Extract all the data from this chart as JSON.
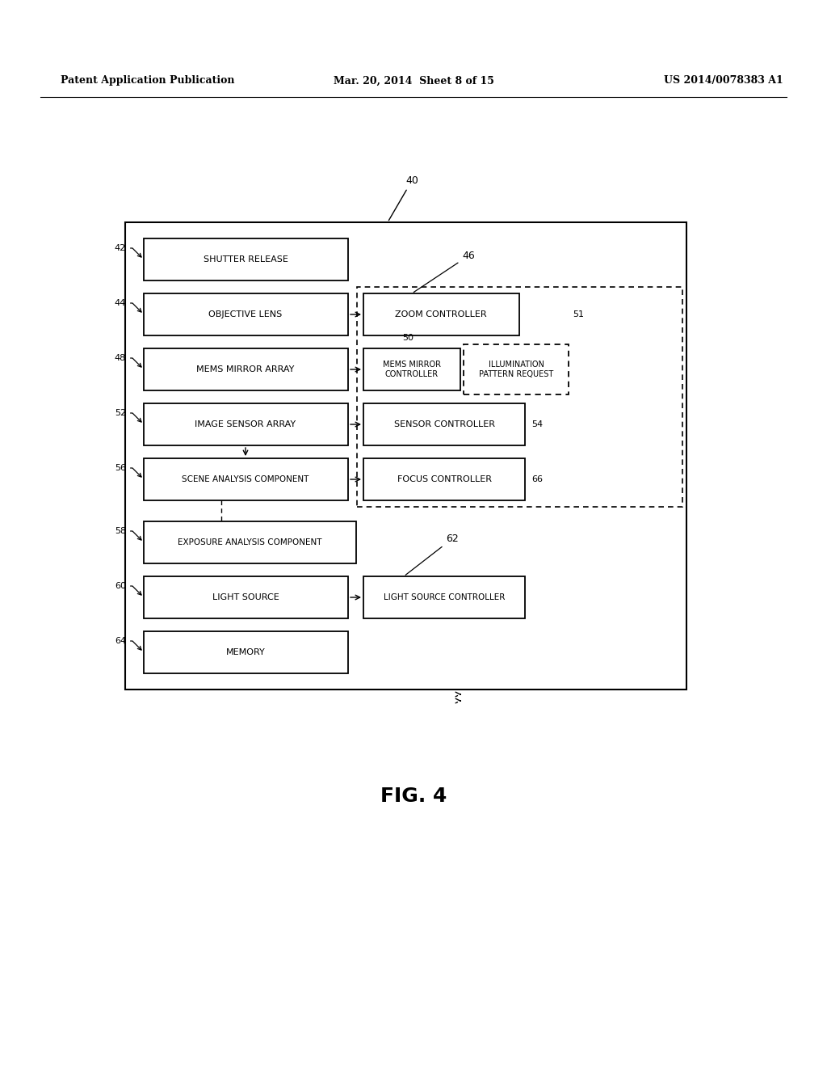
{
  "bg_color": "#ffffff",
  "header_left": "Patent Application Publication",
  "header_mid": "Mar. 20, 2014  Sheet 8 of 15",
  "header_right": "US 2014/0078383 A1",
  "fig_label": "FIG. 4",
  "outer_label": "40"
}
